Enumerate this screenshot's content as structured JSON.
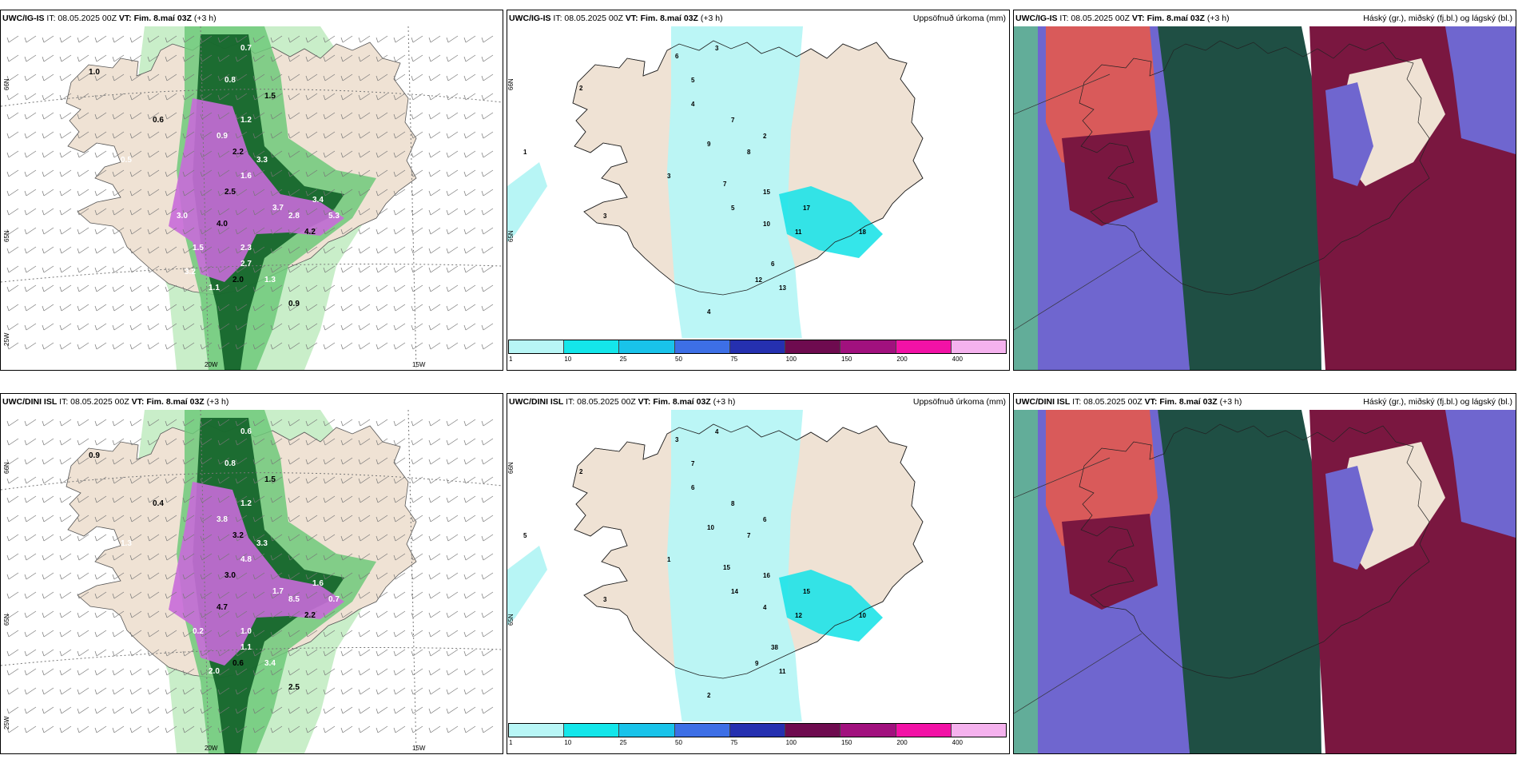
{
  "panels": [
    {
      "id": "p1",
      "kind": "wind",
      "label": "UWC/IG-IS",
      "it": "IT: 08.05.2025 00Z",
      "vt_label": "VT:",
      "vt": "Fim. 8.maí 03Z",
      "lead": "(+3 h)",
      "right_title": "",
      "lat_labels": [
        "66N",
        "65N",
        "25W"
      ],
      "lon_labels": [
        "20W",
        "15W"
      ]
    },
    {
      "id": "p2",
      "kind": "precip",
      "label": "UWC/IG-IS",
      "it": "IT: 08.05.2025 00Z",
      "vt_label": "VT:",
      "vt": "Fim. 8.maí 03Z",
      "lead": "(+3 h)",
      "right_title": "Uppsöfnuð úrkoma (mm)",
      "lat_labels": [
        "66N",
        "65N"
      ],
      "lon_labels": []
    },
    {
      "id": "p3",
      "kind": "cloud",
      "label": "UWC/IG-IS",
      "it": "IT: 08.05.2025 00Z",
      "vt_label": "VT:",
      "vt": "Fim. 8.maí 03Z",
      "lead": "(+3 h)",
      "right_title": "Háský (gr.), miðský (fj.bl.) og lágský (bl.)",
      "lat_labels": [],
      "lon_labels": []
    },
    {
      "id": "p4",
      "kind": "wind",
      "label": "UWC/DINI ISL",
      "it": "IT: 08.05.2025 00Z",
      "vt_label": "VT:",
      "vt": "Fim. 8.maí 03Z",
      "lead": "(+3 h)",
      "right_title": "",
      "lat_labels": [
        "66N",
        "65N",
        "25W"
      ],
      "lon_labels": [
        "20W",
        "15W"
      ]
    },
    {
      "id": "p5",
      "kind": "precip",
      "label": "UWC/DINI ISL",
      "it": "IT: 08.05.2025 00Z",
      "vt_label": "VT:",
      "vt": "Fim. 8.maí 03Z",
      "lead": "(+3 h)",
      "right_title": "Uppsöfnuð úrkoma (mm)",
      "lat_labels": [
        "66N",
        "65N"
      ],
      "lon_labels": []
    },
    {
      "id": "p6",
      "kind": "cloud",
      "label": "UWC/DINI ISL",
      "it": "IT: 08.05.2025 00Z",
      "vt_label": "VT:",
      "vt": "Fim. 8.maí 03Z",
      "lead": "(+3 h)",
      "right_title": "Háský (gr.), miðský (fj.bl.) og lágský (bl.)",
      "lat_labels": [],
      "lon_labels": []
    }
  ],
  "colorbar": {
    "ticks": [
      "1",
      "10",
      "25",
      "50",
      "75",
      "100",
      "150",
      "200",
      "400"
    ],
    "colors": [
      "#b8f6f6",
      "#14e6ea",
      "#19c3ea",
      "#3d6fe6",
      "#2530b0",
      "#6e0b4f",
      "#a1117e",
      "#f212a6",
      "#f5b2ee"
    ]
  },
  "colors": {
    "land": "#efe2d4",
    "precip_light": "#b7f5f5",
    "precip_cyan": "#1ee3e8",
    "wind_green_light": "#c9eec9",
    "wind_green": "#6fc97a",
    "wind_green_dark": "#0b5b22",
    "wind_magenta": "#c86bd9",
    "cloud_high": "#1f4f44",
    "cloud_mid": "#6f66cf",
    "cloud_low": "#7a1740",
    "cloud_red": "#d95a5a"
  },
  "wind_labels": {
    "p1": [
      "1.0",
      "0.7",
      "0.8",
      "1.5",
      "1.2",
      "0.9",
      "2.2",
      "3.3",
      "1.6",
      "2.5",
      "3.7",
      "2.8",
      "4.2",
      "5.3",
      "3.4",
      "0.6",
      "0.5",
      "2.7",
      "2.0",
      "1.1",
      "1.3",
      "0.9",
      "1.5",
      "2.3",
      "4.0",
      "3.2",
      "3.0"
    ],
    "p4": [
      "0.9",
      "0.6",
      "0.8",
      "1.5",
      "1.2",
      "3.8",
      "3.2",
      "3.3",
      "4.8",
      "3.0",
      "1.7",
      "8.5",
      "2.2",
      "0.7",
      "1.6",
      "0.4",
      "1.3",
      "1.1",
      "0.6",
      "2.0",
      "3.4",
      "2.5",
      "0.2",
      "1.0",
      "4.7"
    ]
  },
  "precip_labels": {
    "p2": [
      "6",
      "3",
      "5",
      "4",
      "7",
      "2",
      "1",
      "9",
      "8",
      "3",
      "7",
      "5",
      "6",
      "15",
      "17",
      "11",
      "18",
      "12",
      "13",
      "10",
      "4",
      "2",
      "3"
    ],
    "p5": [
      "3",
      "4",
      "7",
      "6",
      "8",
      "2",
      "5",
      "10",
      "7",
      "1",
      "15",
      "14",
      "38",
      "16",
      "15",
      "12",
      "10",
      "9",
      "11",
      "4",
      "2",
      "6",
      "3"
    ]
  }
}
